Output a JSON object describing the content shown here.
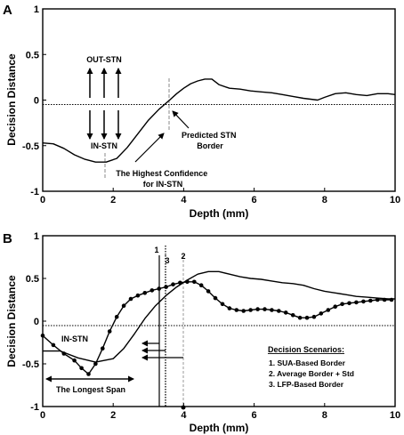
{
  "chart_data": [
    {
      "panel": "A",
      "type": "line",
      "xlabel": "Depth (mm)",
      "ylabel": "Decision Distance",
      "xlim": [
        0,
        10
      ],
      "ylim": [
        -1,
        1
      ],
      "xticks": [
        "0",
        "2",
        "4",
        "6",
        "8",
        "10"
      ],
      "yticks": [
        "-1",
        "-0.5",
        "0",
        "0.5",
        "1"
      ],
      "series": [
        {
          "x": [
            0,
            0.3,
            0.6,
            0.9,
            1.2,
            1.5,
            1.8,
            2.1,
            2.4,
            2.7,
            3.0,
            3.3,
            3.6,
            3.8,
            4.0,
            4.2,
            4.4,
            4.6,
            4.8,
            5.0,
            5.3,
            5.6,
            5.9,
            6.2,
            6.5,
            6.8,
            7.1,
            7.4,
            7.6,
            7.8,
            8.0,
            8.3,
            8.6,
            8.9,
            9.2,
            9.5,
            9.8,
            10.0
          ],
          "y": [
            -0.47,
            -0.48,
            -0.53,
            -0.6,
            -0.65,
            -0.68,
            -0.68,
            -0.64,
            -0.52,
            -0.37,
            -0.22,
            -0.1,
            0.0,
            0.07,
            0.13,
            0.18,
            0.21,
            0.23,
            0.23,
            0.17,
            0.13,
            0.12,
            0.1,
            0.09,
            0.08,
            0.06,
            0.04,
            0.02,
            0.01,
            0.0,
            0.03,
            0.07,
            0.08,
            0.06,
            0.05,
            0.07,
            0.07,
            0.06
          ]
        }
      ],
      "annotations": {
        "out_stn": "OUT-STN",
        "in_stn": "IN-STN",
        "predicted_border": [
          "Predicted STN",
          "Border"
        ],
        "highest_confidence": [
          "The Highest Confidence",
          "for IN-STN"
        ]
      }
    },
    {
      "panel": "B",
      "type": "line",
      "xlabel": "Depth (mm)",
      "ylabel": "Decision Distance",
      "xlim": [
        0,
        10
      ],
      "ylim": [
        -1,
        1
      ],
      "xticks": [
        "0",
        "2",
        "4",
        "6",
        "8",
        "10"
      ],
      "yticks": [
        "-1",
        "-0.5",
        "0",
        "0.5",
        "1"
      ],
      "series": [
        {
          "marker": "circle",
          "x": [
            0,
            0.3,
            0.6,
            0.9,
            1.1,
            1.3,
            1.5,
            1.7,
            1.9,
            2.1,
            2.3,
            2.5,
            2.7,
            2.9,
            3.1,
            3.3,
            3.5,
            3.7,
            3.9,
            4.1,
            4.3,
            4.5,
            4.7,
            4.9,
            5.1,
            5.3,
            5.5,
            5.7,
            5.9,
            6.1,
            6.3,
            6.5,
            6.7,
            6.9,
            7.1,
            7.3,
            7.5,
            7.7,
            7.9,
            8.1,
            8.3,
            8.5,
            8.7,
            8.9,
            9.1,
            9.3,
            9.5,
            9.7,
            9.9
          ],
          "y": [
            -0.17,
            -0.28,
            -0.38,
            -0.46,
            -0.55,
            -0.62,
            -0.5,
            -0.32,
            -0.12,
            0.05,
            0.18,
            0.26,
            0.3,
            0.33,
            0.36,
            0.38,
            0.4,
            0.43,
            0.45,
            0.46,
            0.46,
            0.42,
            0.35,
            0.27,
            0.2,
            0.15,
            0.13,
            0.12,
            0.13,
            0.14,
            0.14,
            0.13,
            0.12,
            0.1,
            0.07,
            0.04,
            0.04,
            0.05,
            0.09,
            0.13,
            0.17,
            0.2,
            0.21,
            0.22,
            0.23,
            0.24,
            0.25,
            0.25,
            0.25
          ]
        },
        {
          "marker": "none",
          "x": [
            0,
            0.5,
            1.0,
            1.5,
            2.0,
            2.3,
            2.6,
            2.9,
            3.2,
            3.5,
            3.8,
            4.1,
            4.4,
            4.7,
            5.0,
            5.3,
            5.6,
            5.9,
            6.2,
            6.5,
            6.8,
            7.1,
            7.4,
            7.7,
            8.0,
            8.3,
            8.6,
            8.9,
            9.2,
            9.5,
            9.8,
            10.0
          ],
          "y": [
            -0.35,
            -0.35,
            -0.43,
            -0.48,
            -0.44,
            -0.32,
            -0.15,
            0.03,
            0.18,
            0.3,
            0.4,
            0.48,
            0.55,
            0.58,
            0.58,
            0.55,
            0.52,
            0.5,
            0.49,
            0.47,
            0.45,
            0.44,
            0.42,
            0.38,
            0.35,
            0.33,
            0.31,
            0.29,
            0.28,
            0.27,
            0.26,
            0.26
          ]
        }
      ],
      "border_lines": [
        {
          "label": "1",
          "x": 3.3,
          "style": "solid"
        },
        {
          "label": "3",
          "x": 3.48,
          "style": "dotted"
        },
        {
          "label": "2",
          "x": 4.0,
          "style": "gray"
        }
      ],
      "annotations": {
        "in_stn": "IN-STN",
        "longest_span": "The Longest Span"
      },
      "legend": {
        "title": "Decision Scenarios:",
        "items": [
          "1.  SUA-Based Border",
          "2.  Average Border + Std",
          "3.  LFP-Based Border"
        ]
      }
    }
  ]
}
